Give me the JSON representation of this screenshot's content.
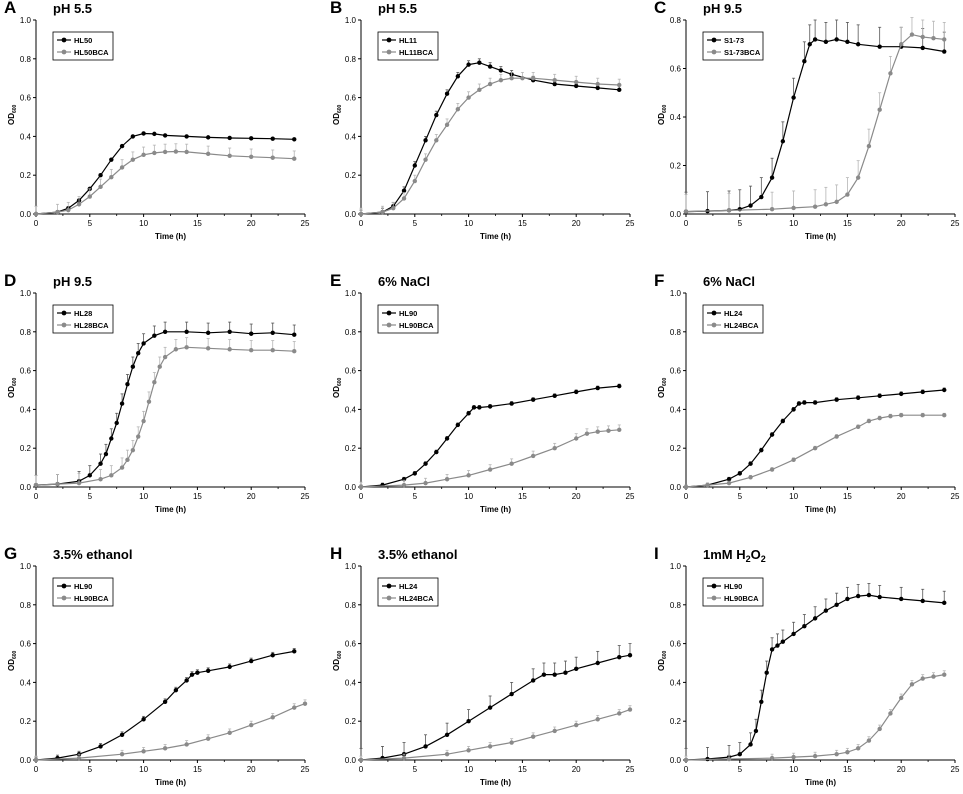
{
  "colors": {
    "series1": "#000000",
    "series2": "#8a8a8a",
    "errorbar2": "#b5b5b5"
  },
  "chart_data": [
    {
      "panel": "A",
      "type": "line",
      "title": "pH 5.5",
      "xlabel": "Time (h)",
      "ylabel": "OD",
      "ylabel_sub": "600",
      "xlim": [
        0,
        25
      ],
      "ylim": [
        0,
        1.0
      ],
      "xticks": [
        "0",
        "5",
        "10",
        "15",
        "20",
        "25"
      ],
      "yticks": [
        "0.0",
        "0.2",
        "0.4",
        "0.6",
        "0.8",
        "1.0"
      ],
      "legend": "top-left",
      "series": [
        {
          "name": "HL50",
          "x": [
            0,
            2,
            3,
            4,
            5,
            6,
            7,
            8,
            9,
            10,
            11,
            12,
            14,
            16,
            18,
            20,
            22,
            24
          ],
          "y": [
            0,
            0.01,
            0.03,
            0.07,
            0.13,
            0.2,
            0.28,
            0.35,
            0.4,
            0.415,
            0.413,
            0.405,
            0.4,
            0.395,
            0.392,
            0.39,
            0.388,
            0.385
          ],
          "err": 0.005
        },
        {
          "name": "HL50BCA",
          "x": [
            0,
            2,
            3,
            4,
            5,
            6,
            7,
            8,
            9,
            10,
            11,
            12,
            13,
            14,
            16,
            18,
            20,
            22,
            24
          ],
          "y": [
            0,
            0.01,
            0.02,
            0.05,
            0.09,
            0.14,
            0.19,
            0.24,
            0.28,
            0.305,
            0.315,
            0.32,
            0.322,
            0.32,
            0.31,
            0.3,
            0.295,
            0.29,
            0.285
          ],
          "err": 0.04
        }
      ]
    },
    {
      "panel": "B",
      "type": "line",
      "title": "pH 5.5",
      "xlabel": "Time (h)",
      "ylabel": "OD",
      "ylabel_sub": "600",
      "xlim": [
        0,
        25
      ],
      "ylim": [
        0,
        1.0
      ],
      "xticks": [
        "0",
        "5",
        "10",
        "15",
        "20",
        "25"
      ],
      "yticks": [
        "0.0",
        "0.2",
        "0.4",
        "0.6",
        "0.8",
        "1.0"
      ],
      "legend": "top-left",
      "series": [
        {
          "name": "HL11",
          "x": [
            0,
            2,
            3,
            4,
            5,
            6,
            7,
            8,
            9,
            10,
            11,
            12,
            13,
            14,
            16,
            18,
            20,
            22,
            24
          ],
          "y": [
            0,
            0.01,
            0.04,
            0.12,
            0.25,
            0.38,
            0.51,
            0.62,
            0.71,
            0.77,
            0.78,
            0.76,
            0.74,
            0.72,
            0.69,
            0.67,
            0.66,
            0.65,
            0.64
          ],
          "err": 0.02
        },
        {
          "name": "HL11BCA",
          "x": [
            0,
            2,
            3,
            4,
            5,
            6,
            7,
            8,
            9,
            10,
            11,
            12,
            13,
            14,
            15,
            16,
            18,
            20,
            22,
            24
          ],
          "y": [
            0,
            0.01,
            0.03,
            0.08,
            0.17,
            0.28,
            0.38,
            0.46,
            0.54,
            0.6,
            0.64,
            0.67,
            0.69,
            0.7,
            0.7,
            0.7,
            0.69,
            0.68,
            0.67,
            0.665
          ],
          "err": 0.03
        }
      ]
    },
    {
      "panel": "C",
      "type": "line",
      "title": "pH 9.5",
      "xlabel": "Time (h)",
      "ylabel": "OD",
      "ylabel_sub": "600",
      "xlim": [
        0,
        25
      ],
      "ylim": [
        0,
        0.8
      ],
      "xticks": [
        "0",
        "5",
        "10",
        "15",
        "20",
        "25"
      ],
      "yticks": [
        "0.0",
        "0.2",
        "0.4",
        "0.6",
        "0.8"
      ],
      "legend": "top-left",
      "series": [
        {
          "name": "S1-73",
          "x": [
            0,
            2,
            4,
            5,
            6,
            7,
            8,
            9,
            10,
            11,
            11.5,
            12,
            13,
            14,
            15,
            16,
            18,
            20,
            22,
            24
          ],
          "y": [
            0.01,
            0.012,
            0.015,
            0.02,
            0.035,
            0.07,
            0.15,
            0.3,
            0.48,
            0.63,
            0.7,
            0.72,
            0.71,
            0.72,
            0.71,
            0.7,
            0.69,
            0.69,
            0.685,
            0.67
          ],
          "err": 0.08
        },
        {
          "name": "S1-73BCA",
          "x": [
            0,
            4,
            8,
            10,
            12,
            13,
            14,
            15,
            16,
            17,
            18,
            19,
            20,
            21,
            22,
            23,
            24
          ],
          "y": [
            0.01,
            0.015,
            0.02,
            0.025,
            0.03,
            0.04,
            0.05,
            0.08,
            0.15,
            0.28,
            0.43,
            0.58,
            0.7,
            0.74,
            0.73,
            0.725,
            0.72
          ],
          "err": 0.07
        }
      ]
    },
    {
      "panel": "D",
      "type": "line",
      "title": "pH 9.5",
      "xlabel": "Time (h)",
      "ylabel": "OD",
      "ylabel_sub": "600",
      "xlim": [
        0,
        25
      ],
      "ylim": [
        0,
        1.0
      ],
      "xticks": [
        "0",
        "5",
        "10",
        "15",
        "20",
        "25"
      ],
      "yticks": [
        "0.0",
        "0.2",
        "0.4",
        "0.6",
        "0.8",
        "1.0"
      ],
      "legend": "top-left",
      "series": [
        {
          "name": "HL28",
          "x": [
            0,
            2,
            4,
            5,
            6,
            6.5,
            7,
            7.5,
            8,
            8.5,
            9,
            9.5,
            10,
            11,
            12,
            14,
            16,
            18,
            20,
            22,
            24
          ],
          "y": [
            0.01,
            0.015,
            0.03,
            0.06,
            0.12,
            0.17,
            0.25,
            0.33,
            0.43,
            0.53,
            0.62,
            0.69,
            0.74,
            0.78,
            0.8,
            0.8,
            0.795,
            0.8,
            0.79,
            0.795,
            0.785
          ],
          "err": 0.05
        },
        {
          "name": "HL28BCA",
          "x": [
            0,
            2,
            4,
            6,
            7,
            8,
            8.5,
            9,
            9.5,
            10,
            10.5,
            11,
            11.5,
            12,
            13,
            14,
            16,
            18,
            20,
            22,
            24
          ],
          "y": [
            0.01,
            0.015,
            0.02,
            0.04,
            0.06,
            0.1,
            0.14,
            0.19,
            0.26,
            0.34,
            0.44,
            0.54,
            0.62,
            0.67,
            0.71,
            0.72,
            0.715,
            0.71,
            0.705,
            0.705,
            0.7
          ],
          "err": 0.05
        }
      ]
    },
    {
      "panel": "E",
      "type": "line",
      "title": "6% NaCl",
      "xlabel": "Time (h)",
      "ylabel": "OD",
      "ylabel_sub": "600",
      "xlim": [
        0,
        25
      ],
      "ylim": [
        0,
        1.0
      ],
      "xticks": [
        "0",
        "5",
        "10",
        "15",
        "20",
        "25"
      ],
      "yticks": [
        "0.0",
        "0.2",
        "0.4",
        "0.6",
        "0.8",
        "1.0"
      ],
      "legend": "top-left",
      "series": [
        {
          "name": "HL90",
          "x": [
            0,
            2,
            4,
            5,
            6,
            7,
            8,
            9,
            10,
            10.5,
            11,
            12,
            14,
            16,
            18,
            20,
            22,
            24
          ],
          "y": [
            0,
            0.01,
            0.04,
            0.07,
            0.12,
            0.18,
            0.25,
            0.32,
            0.38,
            0.41,
            0.41,
            0.415,
            0.43,
            0.45,
            0.47,
            0.49,
            0.51,
            0.52
          ],
          "err": 0.01
        },
        {
          "name": "HL90BCA",
          "x": [
            0,
            4,
            6,
            8,
            10,
            12,
            14,
            16,
            18,
            20,
            21,
            22,
            23,
            24
          ],
          "y": [
            0,
            0.01,
            0.02,
            0.04,
            0.06,
            0.09,
            0.12,
            0.16,
            0.2,
            0.25,
            0.275,
            0.285,
            0.29,
            0.295
          ],
          "err": 0.025
        }
      ]
    },
    {
      "panel": "F",
      "type": "line",
      "title": "6% NaCl",
      "xlabel": "Time (h)",
      "ylabel": "OD",
      "ylabel_sub": "600",
      "xlim": [
        0,
        25
      ],
      "ylim": [
        0,
        1.0
      ],
      "xticks": [
        "0",
        "5",
        "10",
        "15",
        "20",
        "25"
      ],
      "yticks": [
        "0.0",
        "0.2",
        "0.4",
        "0.6",
        "0.8",
        "1.0"
      ],
      "legend": "top-left",
      "series": [
        {
          "name": "HL24",
          "x": [
            0,
            2,
            4,
            5,
            6,
            7,
            8,
            9,
            10,
            10.5,
            11,
            12,
            14,
            16,
            18,
            20,
            22,
            24
          ],
          "y": [
            0,
            0.01,
            0.04,
            0.07,
            0.12,
            0.19,
            0.27,
            0.34,
            0.4,
            0.43,
            0.435,
            0.435,
            0.45,
            0.46,
            0.47,
            0.48,
            0.49,
            0.5
          ],
          "err": 0.01
        },
        {
          "name": "HL24BCA",
          "x": [
            0,
            2,
            4,
            6,
            8,
            10,
            12,
            14,
            16,
            17,
            18,
            19,
            20,
            22,
            24
          ],
          "y": [
            0,
            0.01,
            0.02,
            0.05,
            0.09,
            0.14,
            0.2,
            0.26,
            0.31,
            0.34,
            0.355,
            0.365,
            0.37,
            0.37,
            0.37
          ],
          "err": 0.01
        }
      ]
    },
    {
      "panel": "G",
      "type": "line",
      "title": "3.5% ethanol",
      "xlabel": "Time (h)",
      "ylabel": "OD",
      "ylabel_sub": "600",
      "xlim": [
        0,
        25
      ],
      "ylim": [
        0,
        1.0
      ],
      "xticks": [
        "0",
        "5",
        "10",
        "15",
        "20",
        "25"
      ],
      "yticks": [
        "0.0",
        "0.2",
        "0.4",
        "0.6",
        "0.8",
        "1.0"
      ],
      "legend": "top-left",
      "series": [
        {
          "name": "HL90",
          "x": [
            0,
            2,
            4,
            6,
            8,
            10,
            12,
            13,
            14,
            14.5,
            15,
            16,
            18,
            20,
            22,
            24
          ],
          "y": [
            0,
            0.01,
            0.03,
            0.07,
            0.13,
            0.21,
            0.3,
            0.36,
            0.41,
            0.44,
            0.45,
            0.46,
            0.48,
            0.51,
            0.54,
            0.56
          ],
          "err": 0.015
        },
        {
          "name": "HL90BCA",
          "x": [
            0,
            4,
            8,
            10,
            12,
            14,
            16,
            18,
            20,
            22,
            24,
            25
          ],
          "y": [
            0,
            0.01,
            0.03,
            0.045,
            0.06,
            0.08,
            0.11,
            0.14,
            0.18,
            0.22,
            0.27,
            0.29
          ],
          "err": 0.02
        }
      ]
    },
    {
      "panel": "H",
      "type": "line",
      "title": "3.5% ethanol",
      "xlabel": "Time (h)",
      "ylabel": "OD",
      "ylabel_sub": "600",
      "xlim": [
        0,
        25
      ],
      "ylim": [
        0,
        1.0
      ],
      "xticks": [
        "0",
        "5",
        "10",
        "15",
        "20",
        "25"
      ],
      "yticks": [
        "0.0",
        "0.2",
        "0.4",
        "0.6",
        "0.8",
        "1.0"
      ],
      "legend": "top-left",
      "series": [
        {
          "name": "HL24",
          "x": [
            0,
            2,
            4,
            6,
            8,
            10,
            12,
            14,
            16,
            17,
            18,
            19,
            20,
            22,
            24,
            25
          ],
          "y": [
            0,
            0.01,
            0.03,
            0.07,
            0.13,
            0.2,
            0.27,
            0.34,
            0.41,
            0.44,
            0.44,
            0.45,
            0.47,
            0.5,
            0.53,
            0.54
          ],
          "err": 0.06
        },
        {
          "name": "HL24BCA",
          "x": [
            0,
            4,
            8,
            10,
            12,
            14,
            16,
            18,
            20,
            22,
            24,
            25
          ],
          "y": [
            0,
            0.01,
            0.03,
            0.05,
            0.07,
            0.09,
            0.12,
            0.15,
            0.18,
            0.21,
            0.24,
            0.26
          ],
          "err": 0.02
        }
      ]
    },
    {
      "panel": "I",
      "type": "line",
      "title": "1mM H",
      "title_sub": "2",
      "title_tail": "O",
      "title_sub2": "2",
      "xlabel": "Time (h)",
      "ylabel": "OD",
      "ylabel_sub": "600",
      "xlim": [
        0,
        25
      ],
      "ylim": [
        0,
        1.0
      ],
      "xticks": [
        "0",
        "5",
        "10",
        "15",
        "20",
        "25"
      ],
      "yticks": [
        "0.0",
        "0.2",
        "0.4",
        "0.6",
        "0.8",
        "1.0"
      ],
      "legend": "top-left",
      "series": [
        {
          "name": "HL90",
          "x": [
            0,
            2,
            4,
            5,
            6,
            6.5,
            7,
            7.5,
            8,
            8.5,
            9,
            10,
            11,
            12,
            13,
            14,
            15,
            16,
            17,
            18,
            20,
            22,
            24
          ],
          "y": [
            0,
            0.005,
            0.015,
            0.03,
            0.08,
            0.15,
            0.3,
            0.45,
            0.57,
            0.59,
            0.61,
            0.65,
            0.69,
            0.73,
            0.77,
            0.8,
            0.83,
            0.845,
            0.85,
            0.84,
            0.83,
            0.82,
            0.81
          ],
          "err": 0.06
        },
        {
          "name": "HL90BCA",
          "x": [
            0,
            4,
            8,
            10,
            12,
            14,
            15,
            16,
            17,
            18,
            19,
            20,
            21,
            22,
            23,
            24
          ],
          "y": [
            0,
            0.005,
            0.01,
            0.015,
            0.02,
            0.03,
            0.04,
            0.06,
            0.1,
            0.16,
            0.24,
            0.32,
            0.39,
            0.42,
            0.43,
            0.44
          ],
          "err": 0.02
        }
      ]
    }
  ]
}
